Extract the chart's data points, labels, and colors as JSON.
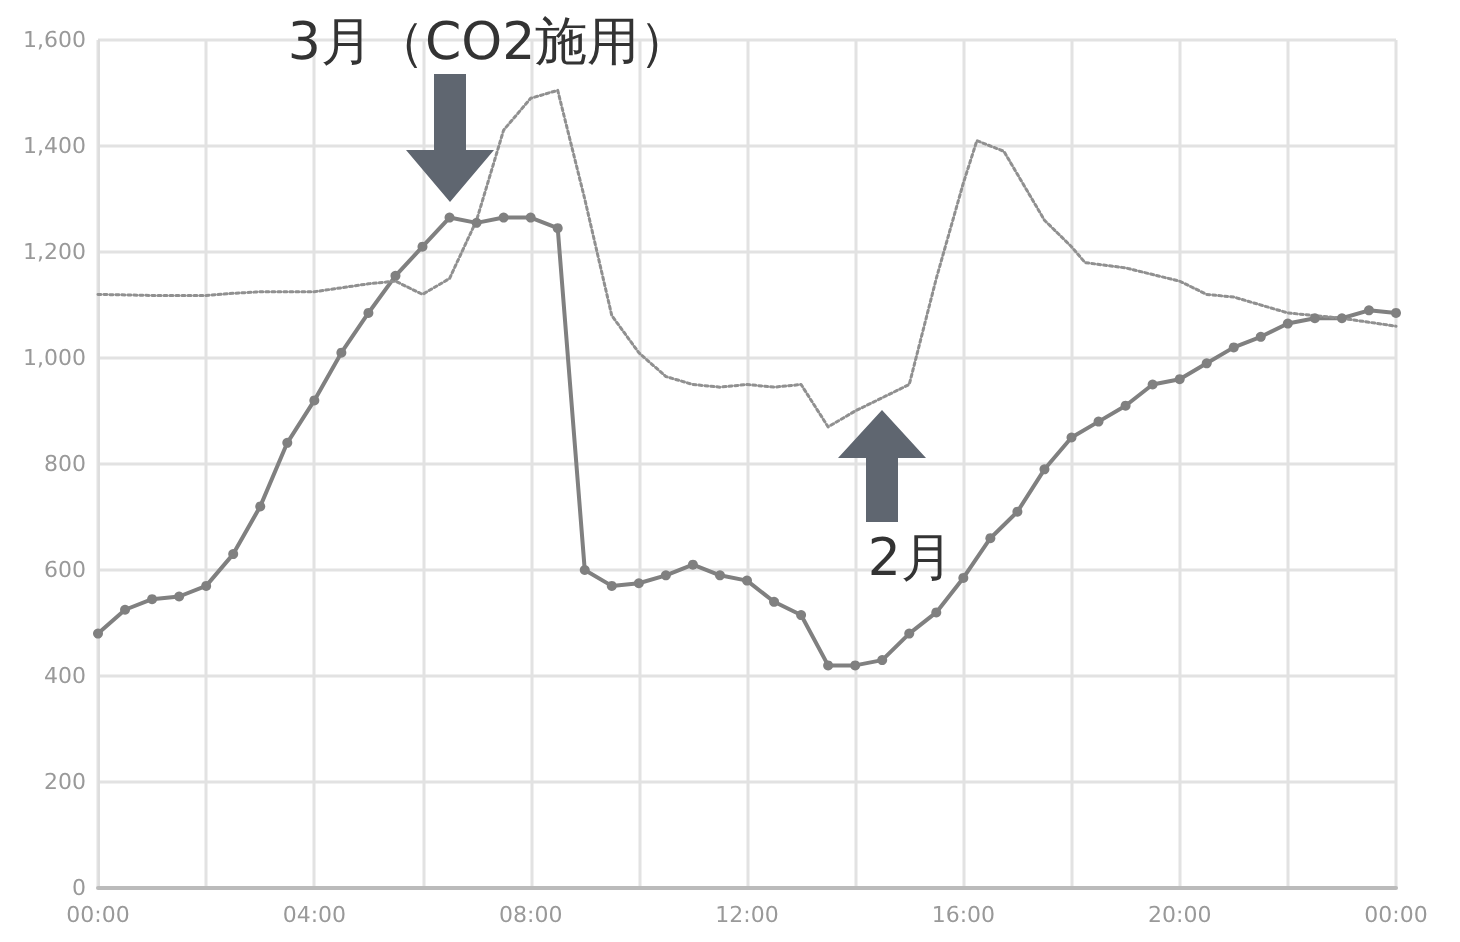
{
  "chart_data": {
    "type": "line",
    "annotations": [
      {
        "text": "3月（CO2施用）",
        "x": 6.5,
        "y": 1265
      },
      {
        "text": "2月",
        "x": 14.5,
        "y": 925
      }
    ],
    "xlim": [
      0,
      24
    ],
    "xticks": [
      {
        "value": 0,
        "label": "00:00"
      },
      {
        "value": 2,
        "label": null
      },
      {
        "value": 4,
        "label": "04:00"
      },
      {
        "value": 6,
        "label": null
      },
      {
        "value": 8,
        "label": "08:00"
      },
      {
        "value": 10,
        "label": null
      },
      {
        "value": 12,
        "label": "12:00"
      },
      {
        "value": 14,
        "label": null
      },
      {
        "value": 16,
        "label": "16:00"
      },
      {
        "value": 18,
        "label": null
      },
      {
        "value": 20,
        "label": "20:00"
      },
      {
        "value": 22,
        "label": null
      },
      {
        "value": 24,
        "label": "00:00"
      }
    ],
    "ylim": [
      0,
      1600
    ],
    "yticks": [
      0,
      200,
      400,
      600,
      800,
      {
        "value": 1000,
        "label": "1,000"
      },
      {
        "value": 1200,
        "label": "1,200"
      },
      {
        "value": 1400,
        "label": "1,400"
      },
      {
        "value": 1600,
        "label": "1,600"
      }
    ],
    "grid": true,
    "series": [
      {
        "color": "#808080",
        "marker": "circle",
        "line_style": "solid",
        "x": [
          0,
          0.5,
          1,
          1.5,
          2,
          2.5,
          3,
          3.5,
          4,
          4.5,
          5,
          5.5,
          6,
          6.5,
          7,
          7.5,
          8,
          8.5,
          9,
          9.5,
          10,
          10.5,
          11,
          11.5,
          12,
          12.5,
          13,
          13.5,
          14,
          14.5,
          15,
          15.5,
          16,
          16.5,
          17,
          17.5,
          18,
          18.5,
          19,
          19.5,
          20,
          20.5,
          21,
          21.5,
          22,
          22.5,
          23,
          23.5,
          24
        ],
        "values": [
          480,
          525,
          545,
          550,
          570,
          630,
          720,
          840,
          920,
          1010,
          1085,
          1155,
          1210,
          1265,
          1255,
          1265,
          1265,
          1245,
          600,
          570,
          575,
          590,
          610,
          590,
          580,
          540,
          515,
          420,
          420,
          430,
          480,
          520,
          585,
          660,
          710,
          790,
          850,
          880,
          910,
          950,
          960,
          990,
          1020,
          1040,
          1065,
          1075,
          1075,
          1090,
          1085
        ]
      },
      {
        "color": "#909090",
        "marker": "none",
        "line_style": "dotted",
        "x": [
          0,
          1,
          2,
          2.5,
          3,
          4,
          5,
          5.5,
          6,
          6.5,
          7,
          7.5,
          8,
          8.5,
          9,
          9.5,
          10,
          10.5,
          11,
          11.5,
          12,
          12.5,
          13,
          13.5,
          14,
          14.5,
          15,
          15.5,
          16,
          16.25,
          16.75,
          17.5,
          18,
          18.25,
          19,
          20,
          20.5,
          21,
          22,
          23,
          24
        ],
        "values": [
          1120,
          1118,
          1118,
          1122,
          1125,
          1125,
          1140,
          1145,
          1120,
          1150,
          1260,
          1430,
          1490,
          1505,
          1300,
          1080,
          1010,
          965,
          950,
          945,
          950,
          945,
          950,
          870,
          900,
          925,
          950,
          1150,
          1330,
          1410,
          1390,
          1260,
          1210,
          1180,
          1170,
          1145,
          1120,
          1115,
          1085,
          1075,
          1060
        ]
      }
    ]
  }
}
